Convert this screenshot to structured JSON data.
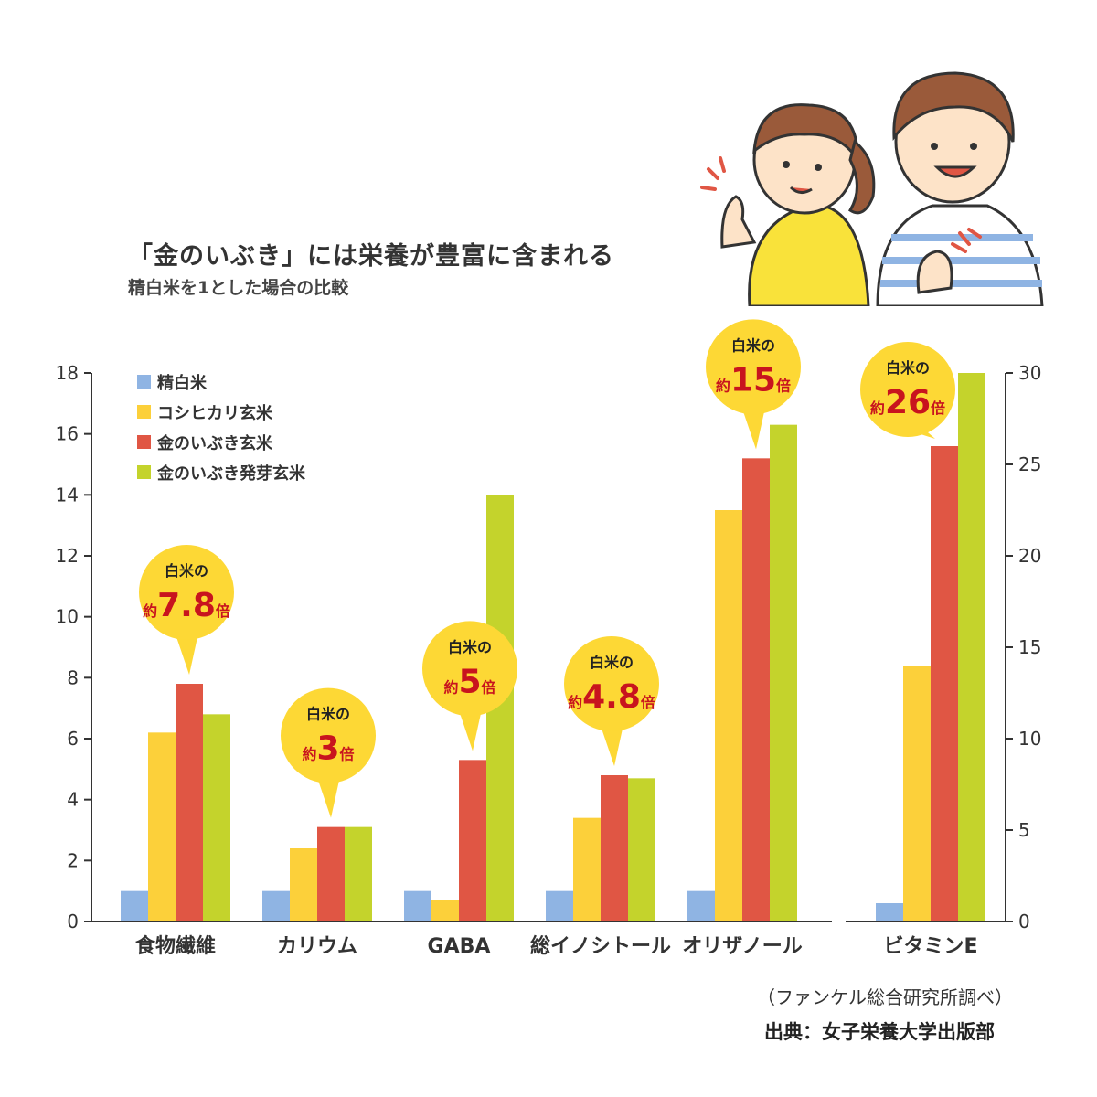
{
  "title": "「金のいぶき」には栄養が豊富に含まれる",
  "subtitle": "精白米を1とした場合の比較",
  "source_note": "（ファンケル総合研究所調べ）",
  "source_credit": "出典：女子栄養大学出版部",
  "colors": {
    "seihakumai": "#8fb4e3",
    "koshihikari": "#fcd03a",
    "kinnoibuki": "#e05644",
    "hatsuga": "#c4d32c",
    "bubble": "#fdd835"
  },
  "chart_data": [
    {
      "type": "bar",
      "categories": [
        "食物繊維",
        "カリウム",
        "GABA",
        "総イノシトール",
        "オリザノール"
      ],
      "ylim": [
        0,
        18
      ],
      "yticks": [
        0,
        2,
        4,
        6,
        8,
        10,
        12,
        14,
        16,
        18
      ],
      "series": [
        {
          "name": "精白米",
          "values": [
            1,
            1,
            1,
            1,
            1
          ]
        },
        {
          "name": "コシヒカリ玄米",
          "values": [
            6.2,
            2.4,
            0.7,
            3.4,
            13.5
          ]
        },
        {
          "name": "金のいぶき玄米",
          "values": [
            7.8,
            3.1,
            5.3,
            4.8,
            15.2
          ]
        },
        {
          "name": "金のいぶき発芽玄米",
          "values": [
            6.8,
            3.1,
            14,
            4.7,
            16.3
          ]
        }
      ],
      "annotations": [
        {
          "category": "食物繊維",
          "top": "白米の",
          "prefix": "約",
          "value": "7.8",
          "suffix": "倍"
        },
        {
          "category": "カリウム",
          "top": "白米の",
          "prefix": "約",
          "value": "3",
          "suffix": "倍"
        },
        {
          "category": "GABA",
          "top": "白米の",
          "prefix": "約",
          "value": "5",
          "suffix": "倍"
        },
        {
          "category": "総イノシトール",
          "top": "白米の",
          "prefix": "約",
          "value": "4.8",
          "suffix": "倍"
        },
        {
          "category": "オリザノール",
          "top": "白米の",
          "prefix": "約",
          "value": "15",
          "suffix": "倍"
        }
      ],
      "legend": [
        "精白米",
        "コシヒカリ玄米",
        "金のいぶき玄米",
        "金のいぶき発芽玄米"
      ],
      "legend_position": "top-left",
      "grid": false
    },
    {
      "type": "bar",
      "categories": [
        "ビタミンE"
      ],
      "ylim": [
        0,
        30
      ],
      "yticks": [
        0,
        5,
        10,
        15,
        20,
        25,
        30
      ],
      "axis_side": "right",
      "series": [
        {
          "name": "精白米",
          "values": [
            1
          ]
        },
        {
          "name": "コシヒカリ玄米",
          "values": [
            14
          ]
        },
        {
          "name": "金のいぶき玄米",
          "values": [
            26
          ]
        },
        {
          "name": "金のいぶき発芽玄米",
          "values": [
            30
          ]
        }
      ],
      "annotations": [
        {
          "category": "ビタミンE",
          "top": "白米の",
          "prefix": "約",
          "value": "26",
          "suffix": "倍"
        }
      ],
      "grid": false
    }
  ]
}
